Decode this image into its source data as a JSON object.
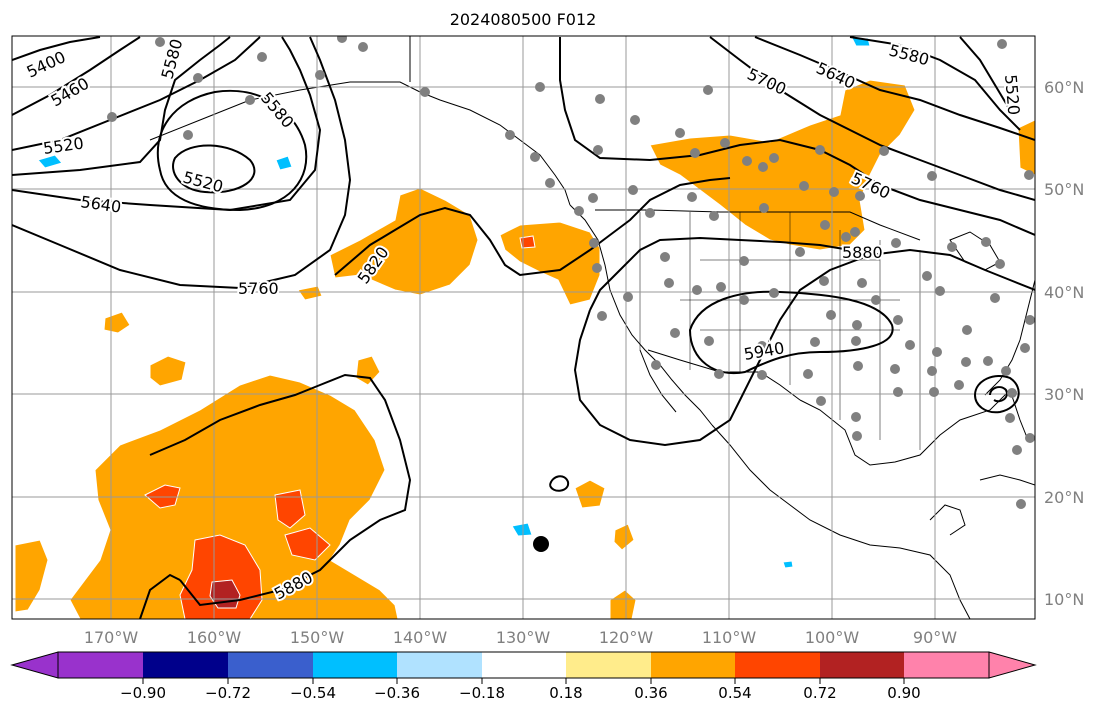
{
  "title": "2024080500 F012",
  "map": {
    "lon_ticks": [
      "170°W",
      "160°W",
      "150°W",
      "140°W",
      "130°W",
      "120°W",
      "110°W",
      "100°W",
      "90°W"
    ],
    "lat_ticks": [
      "60°N",
      "50°N",
      "40°N",
      "30°N",
      "20°N",
      "10°N"
    ],
    "contour_labels": [
      "5400",
      "5460",
      "5520",
      "5580",
      "5580",
      "5520",
      "5640",
      "5760",
      "5820",
      "5700",
      "5640",
      "5580",
      "5520",
      "5760",
      "5880",
      "5940",
      "5880"
    ],
    "colors": {
      "fill_main": "#ffa500",
      "fill_high": "#ff4500",
      "fill_peak": "#b22222",
      "fill_neg": "#00bfff",
      "fill_light": "#ffec8b",
      "contour": "#000000",
      "grid": "#999999",
      "tick_text": "#808080"
    }
  },
  "colorbar": {
    "labels": [
      "−0.90",
      "−0.72",
      "−0.54",
      "−0.36",
      "−0.18",
      "0.18",
      "0.36",
      "0.54",
      "0.72",
      "0.90"
    ],
    "colors": [
      "#9932cc",
      "#00008b",
      "#3a5fcd",
      "#00bfff",
      "#b0e2ff",
      "#ffffff",
      "#ffec8b",
      "#ffa500",
      "#ff4500",
      "#b22222",
      "#ff82ab"
    ]
  }
}
